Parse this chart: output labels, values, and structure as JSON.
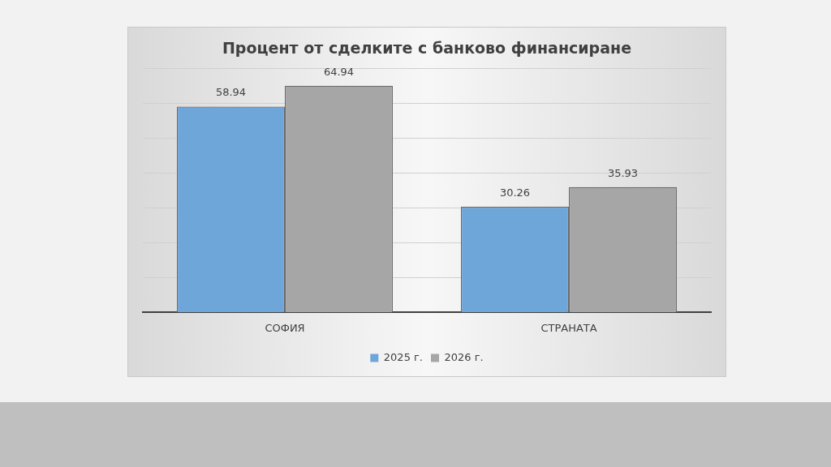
{
  "chart_data": {
    "type": "bar",
    "title": "Процент от сделките с банково финансиране",
    "categories": [
      "СОФИЯ",
      "СТРАНАТА"
    ],
    "series": [
      {
        "name": "2025 г.",
        "color": "#6fa6da",
        "values": [
          58.94,
          30.26
        ]
      },
      {
        "name": "2026 г.",
        "color": "#a6a6a6",
        "values": [
          64.94,
          35.93
        ]
      }
    ],
    "ylim": [
      0,
      70
    ],
    "yticks": [
      {
        "value": 0,
        "label": null
      },
      {
        "value": 10,
        "label": null
      },
      {
        "value": 20,
        "label": null
      },
      {
        "value": 30,
        "label": null
      },
      {
        "value": 40,
        "label": null
      },
      {
        "value": 50,
        "label": null
      },
      {
        "value": 60,
        "label": null
      },
      {
        "value": 70,
        "label": null
      }
    ],
    "tick_labels": "x",
    "grid": "y",
    "data_labels": true,
    "legend": "bottom"
  }
}
